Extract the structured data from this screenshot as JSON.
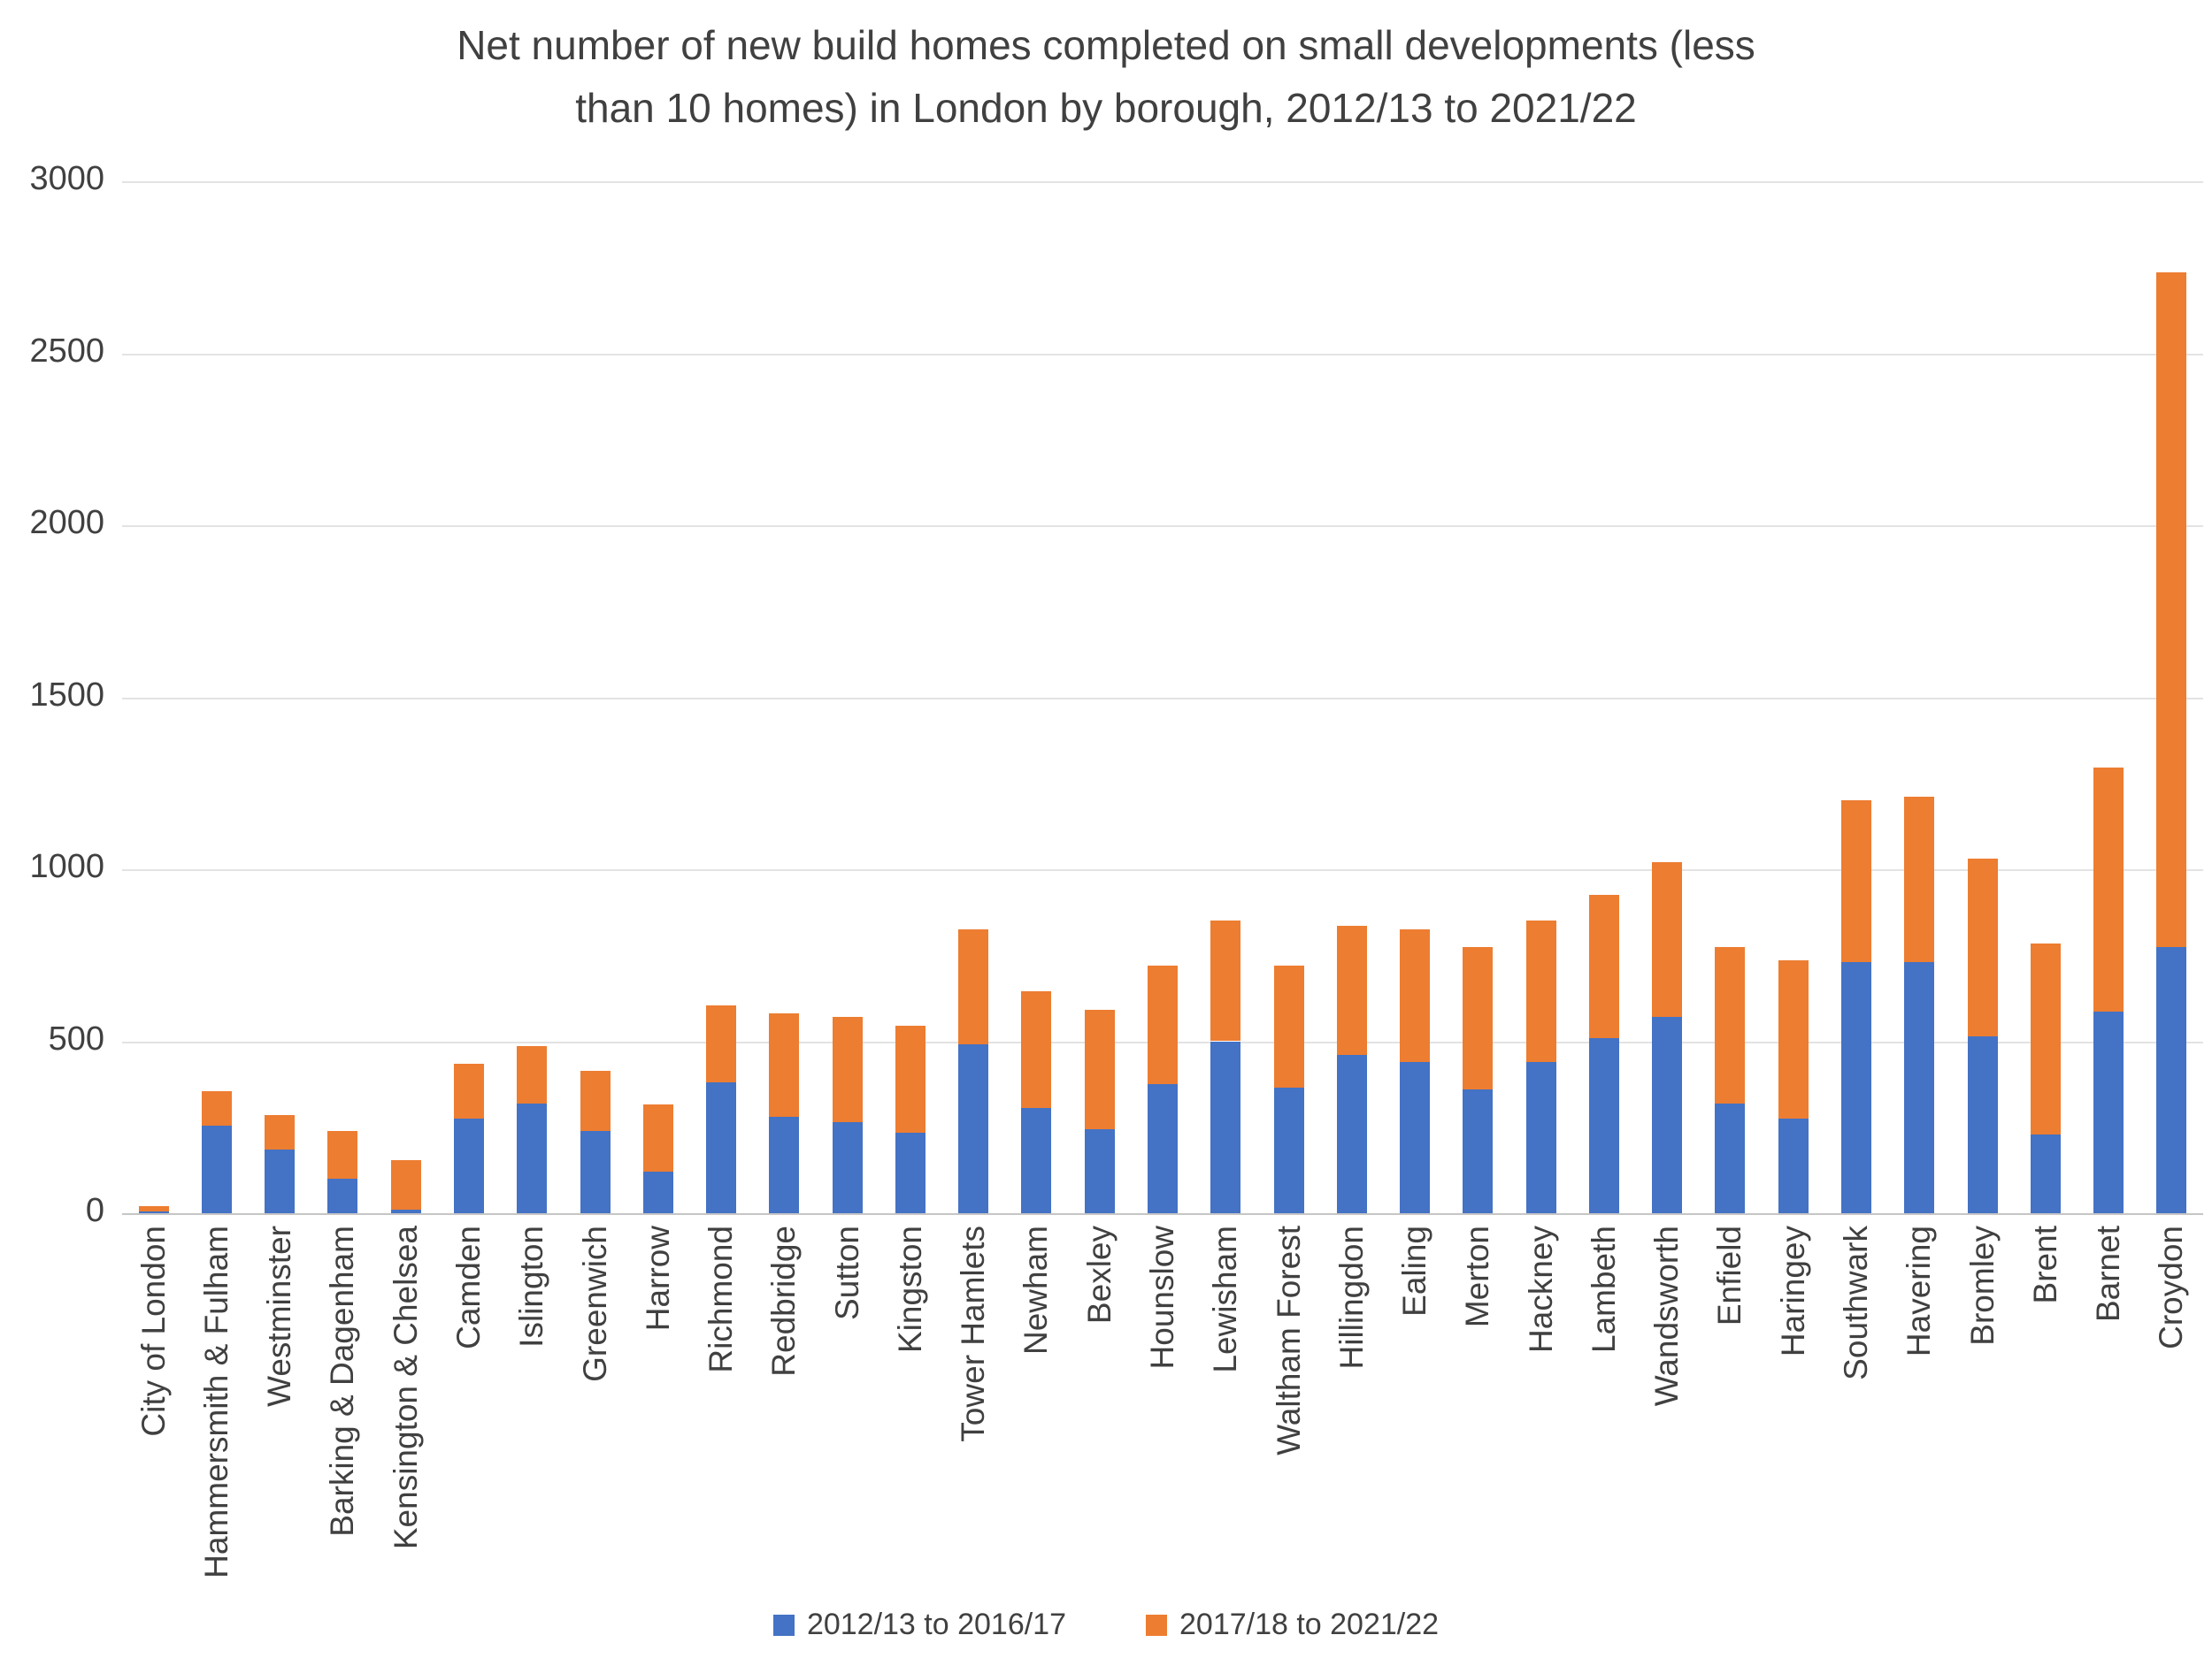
{
  "title_line1": "Net number of new build homes completed on small developments (less",
  "title_line2": "than 10 homes) in London by borough, 2012/13 to 2021/22",
  "chart_data": {
    "type": "bar",
    "stacked": true,
    "title": "Net number of new build homes completed on small developments (less than 10 homes) in London by borough, 2012/13 to 2021/22",
    "xlabel": "",
    "ylabel": "",
    "ylim": [
      0,
      3000
    ],
    "yticks": [
      0,
      500,
      1000,
      1500,
      2000,
      2500,
      3000
    ],
    "grid": true,
    "legend_position": "bottom",
    "categories": [
      "City of London",
      "Hammersmith & Fulham",
      "Westminster",
      "Barking & Dagenham",
      "Kensington & Chelsea",
      "Camden",
      "Islington",
      "Greenwich",
      "Harrow",
      "Richmond",
      "Redbridge",
      "Sutton",
      "Kingston",
      "Tower Hamlets",
      "Newham",
      "Bexley",
      "Hounslow",
      "Lewisham",
      "Waltham Forest",
      "Hillingdon",
      "Ealing",
      "Merton",
      "Hackney",
      "Lambeth",
      "Wandsworth",
      "Enfield",
      "Haringey",
      "Southwark",
      "Havering",
      "Bromley",
      "Brent",
      "Barnet",
      "Croydon"
    ],
    "series": [
      {
        "name": "2012/13 to 2016/17",
        "color": "#4472C4",
        "values": [
          5,
          255,
          185,
          100,
          10,
          275,
          320,
          240,
          120,
          380,
          280,
          265,
          235,
          490,
          305,
          245,
          375,
          500,
          365,
          460,
          440,
          360,
          440,
          510,
          570,
          320,
          275,
          730,
          730,
          515,
          230,
          585,
          775
        ]
      },
      {
        "name": "2017/18 to 2021/22",
        "color": "#ED7D31",
        "values": [
          15,
          100,
          100,
          140,
          145,
          160,
          165,
          175,
          195,
          225,
          300,
          305,
          310,
          335,
          340,
          345,
          345,
          350,
          355,
          375,
          385,
          415,
          410,
          415,
          450,
          455,
          460,
          470,
          480,
          515,
          555,
          710,
          1960
        ]
      }
    ]
  }
}
